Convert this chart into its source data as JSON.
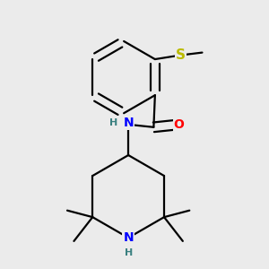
{
  "bg_color": "#ebebeb",
  "bond_color": "#000000",
  "bond_width": 1.6,
  "atom_colors": {
    "N": "#0000ff",
    "O": "#ff0000",
    "S": "#bbbb00",
    "H": "#3a8080"
  },
  "font_size_atom": 10,
  "font_size_H": 8,
  "xlim": [
    0.0,
    1.0
  ],
  "ylim": [
    0.02,
    1.02
  ]
}
